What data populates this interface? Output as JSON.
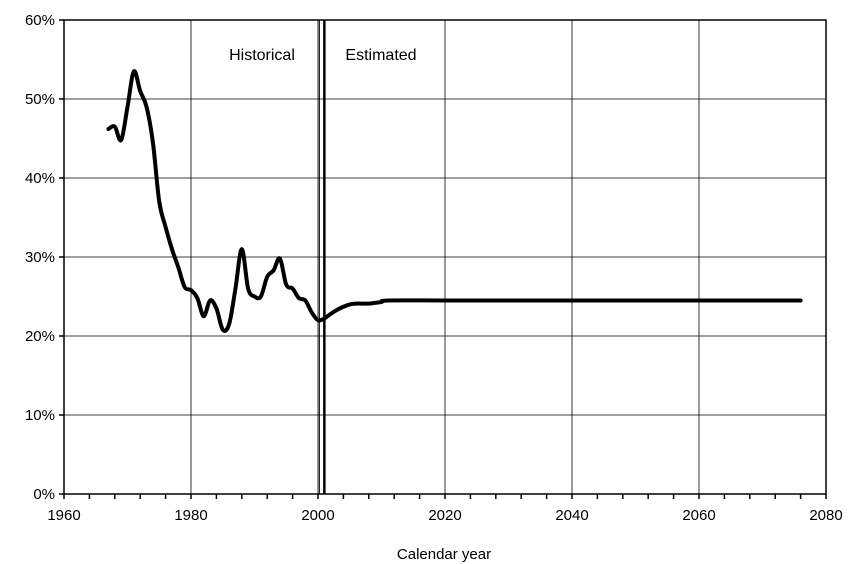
{
  "chart_data": {
    "type": "line",
    "title": "",
    "xlabel": "Calendar year",
    "ylabel": "",
    "xlim": [
      1960,
      2080
    ],
    "ylim": [
      0,
      60
    ],
    "x_ticks": [
      1960,
      1980,
      2000,
      2020,
      2040,
      2060,
      2080
    ],
    "x_tick_labels": [
      "1960",
      "1980",
      "2000",
      "2020",
      "2040",
      "2060",
      "2080"
    ],
    "x_minor_tick_step": 4,
    "y_ticks": [
      0,
      10,
      20,
      30,
      40,
      50,
      60
    ],
    "y_tick_labels": [
      "0%",
      "10%",
      "20%",
      "30%",
      "40%",
      "50%",
      "60%"
    ],
    "grid": true,
    "legend": "none",
    "line_color": "#000000",
    "annotations": {
      "historical": "Historical",
      "estimated": "Estimated"
    },
    "divider_year": 2001,
    "series": [
      {
        "x": [
          1967,
          1968,
          1969,
          1970,
          1971,
          1972,
          1973,
          1974,
          1975,
          1976,
          1977,
          1978,
          1979,
          1980,
          1981,
          1982,
          1983,
          1984,
          1985,
          1986,
          1987,
          1988,
          1989,
          1990,
          1991,
          1992,
          1993,
          1994,
          1995,
          1996,
          1997,
          1998,
          1999,
          2000,
          2001
        ],
        "y": [
          46.2,
          46.5,
          44.8,
          49.0,
          53.5,
          51.0,
          49.0,
          44.5,
          37.0,
          33.8,
          31.0,
          28.7,
          26.2,
          25.8,
          24.8,
          22.5,
          24.5,
          23.5,
          20.8,
          21.5,
          26.0,
          31.0,
          26.0,
          25.0,
          25.0,
          27.5,
          28.3,
          29.8,
          26.5,
          26.0,
          24.8,
          24.5,
          23.0,
          22.0,
          22.2
        ]
      },
      {
        "x": [
          2001,
          2002,
          2003,
          2004,
          2005,
          2006,
          2007,
          2008,
          2009,
          2010,
          2011,
          2020,
          2030,
          2040,
          2050,
          2060,
          2070,
          2076
        ],
        "y": [
          22.2,
          22.8,
          23.3,
          23.7,
          24.0,
          24.1,
          24.1,
          24.1,
          24.2,
          24.3,
          24.5,
          24.5,
          24.5,
          24.5,
          24.5,
          24.5,
          24.5,
          24.5
        ]
      }
    ]
  }
}
